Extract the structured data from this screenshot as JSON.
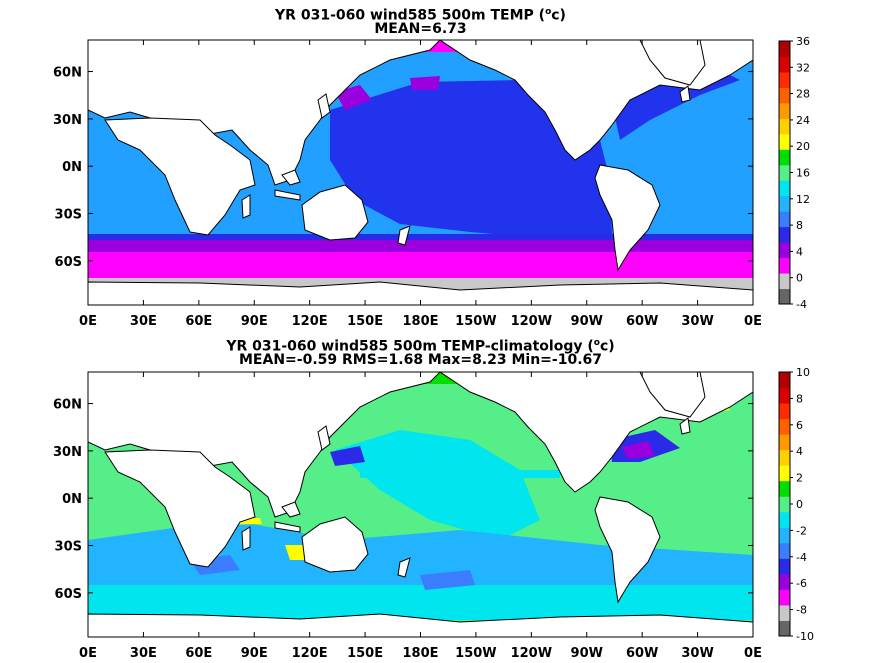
{
  "panels": [
    {
      "title_prefix": "YR 031-060 wind585 500m TEMP (",
      "title_unit": "o",
      "title_suffix": "c)",
      "stats": "MEAN=6.73",
      "colorbar_ticks": [
        "36",
        "32",
        "28",
        "24",
        "20",
        "16",
        "12",
        "8",
        "4",
        "0",
        "-4"
      ]
    },
    {
      "title_prefix": "YR 031-060 wind585 500m TEMP-climatology (",
      "title_unit": "o",
      "title_suffix": "c)",
      "stats": "MEAN=-0.59   RMS=1.68   Max=8.23   Min=-10.67",
      "colorbar_ticks": [
        "10",
        "8",
        "6",
        "4",
        "2",
        "0",
        "-2",
        "-4",
        "-6",
        "-8",
        "-10"
      ]
    }
  ],
  "lon_labels": [
    "0E",
    "30E",
    "60E",
    "90E",
    "120E",
    "150E",
    "180E",
    "150W",
    "120W",
    "90W",
    "60W",
    "30W",
    "0E"
  ],
  "lat_labels": [
    "60N",
    "30N",
    "0N",
    "30S",
    "60S"
  ],
  "colorbar_colors": [
    "#666666",
    "#c8c8c8",
    "#ff00ff",
    "#9900dd",
    "#2a2ae8",
    "#3b7dff",
    "#22b4ff",
    "#00e5ee",
    "#55ee88",
    "#00dd00",
    "#ffff00",
    "#ffd000",
    "#ff9900",
    "#ff6000",
    "#ff2a00",
    "#d80000",
    "#b00000"
  ],
  "map_colors": {
    "land": "#ffffff",
    "coast": "#000000",
    "top_mid_ocean": "#22a0ff",
    "top_deep_blue": "#2233ee",
    "top_purple": "#9900dd",
    "top_magenta": "#ff00ff",
    "top_gray": "#c8c8c8",
    "top_lightblue": "#22b4ff",
    "bot_green": "#55ee88",
    "bot_cyan": "#00e5ee",
    "bot_lightblue": "#22b4ff",
    "bot_blue": "#3b7dff",
    "bot_darkblue": "#2a2ae8",
    "bot_purple": "#9900dd",
    "bot_magenta": "#ff00ff",
    "bot_yellow": "#ffff00",
    "bot_green2": "#00dd00"
  }
}
